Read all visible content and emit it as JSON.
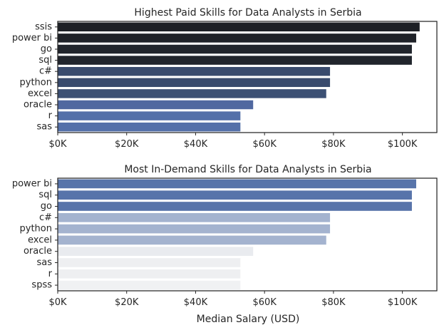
{
  "chart_data": [
    {
      "type": "bar",
      "orientation": "horizontal",
      "title": "Highest Paid Skills for Data Analysts in Serbia",
      "xlabel": "",
      "ylabel": "",
      "xlim": [
        0,
        110000
      ],
      "xticks": [
        0,
        20000,
        40000,
        60000,
        80000,
        100000
      ],
      "xtick_labels": [
        "$0K",
        "$20K",
        "$40K",
        "$60K",
        "$80K",
        "$100K"
      ],
      "categories": [
        "ssis",
        "power bi",
        "go",
        "sql",
        "c#",
        "python",
        "excel",
        "oracle",
        "r",
        "sas"
      ],
      "values": [
        105000,
        104000,
        102750,
        102750,
        79000,
        79000,
        77900,
        56700,
        53000,
        53000
      ],
      "colors": [
        "#1d2025",
        "#1f2228",
        "#21252c",
        "#21252c",
        "#394b6d",
        "#394b6d",
        "#3c5074",
        "#5068a0",
        "#5470a9",
        "#5470a9"
      ],
      "grid": false
    },
    {
      "type": "bar",
      "orientation": "horizontal",
      "title": "Most In-Demand Skills for Data Analysts in Serbia",
      "xlabel": "Median Salary (USD)",
      "ylabel": "",
      "xlim": [
        0,
        110000
      ],
      "xticks": [
        0,
        20000,
        40000,
        60000,
        80000,
        100000
      ],
      "xtick_labels": [
        "$0K",
        "$20K",
        "$40K",
        "$60K",
        "$80K",
        "$100K"
      ],
      "categories": [
        "power bi",
        "sql",
        "go",
        "c#",
        "python",
        "excel",
        "oracle",
        "sas",
        "r",
        "spss"
      ],
      "values": [
        104000,
        102750,
        102750,
        79000,
        79000,
        77900,
        56700,
        53000,
        53000,
        53000
      ],
      "colors": [
        "#5874aa",
        "#5874aa",
        "#5874aa",
        "#a4b3cf",
        "#a4b3cf",
        "#a4b3cf",
        "#e9ebef",
        "#eeeff1",
        "#eeeff1",
        "#f0f1f3"
      ],
      "grid": false
    }
  ]
}
